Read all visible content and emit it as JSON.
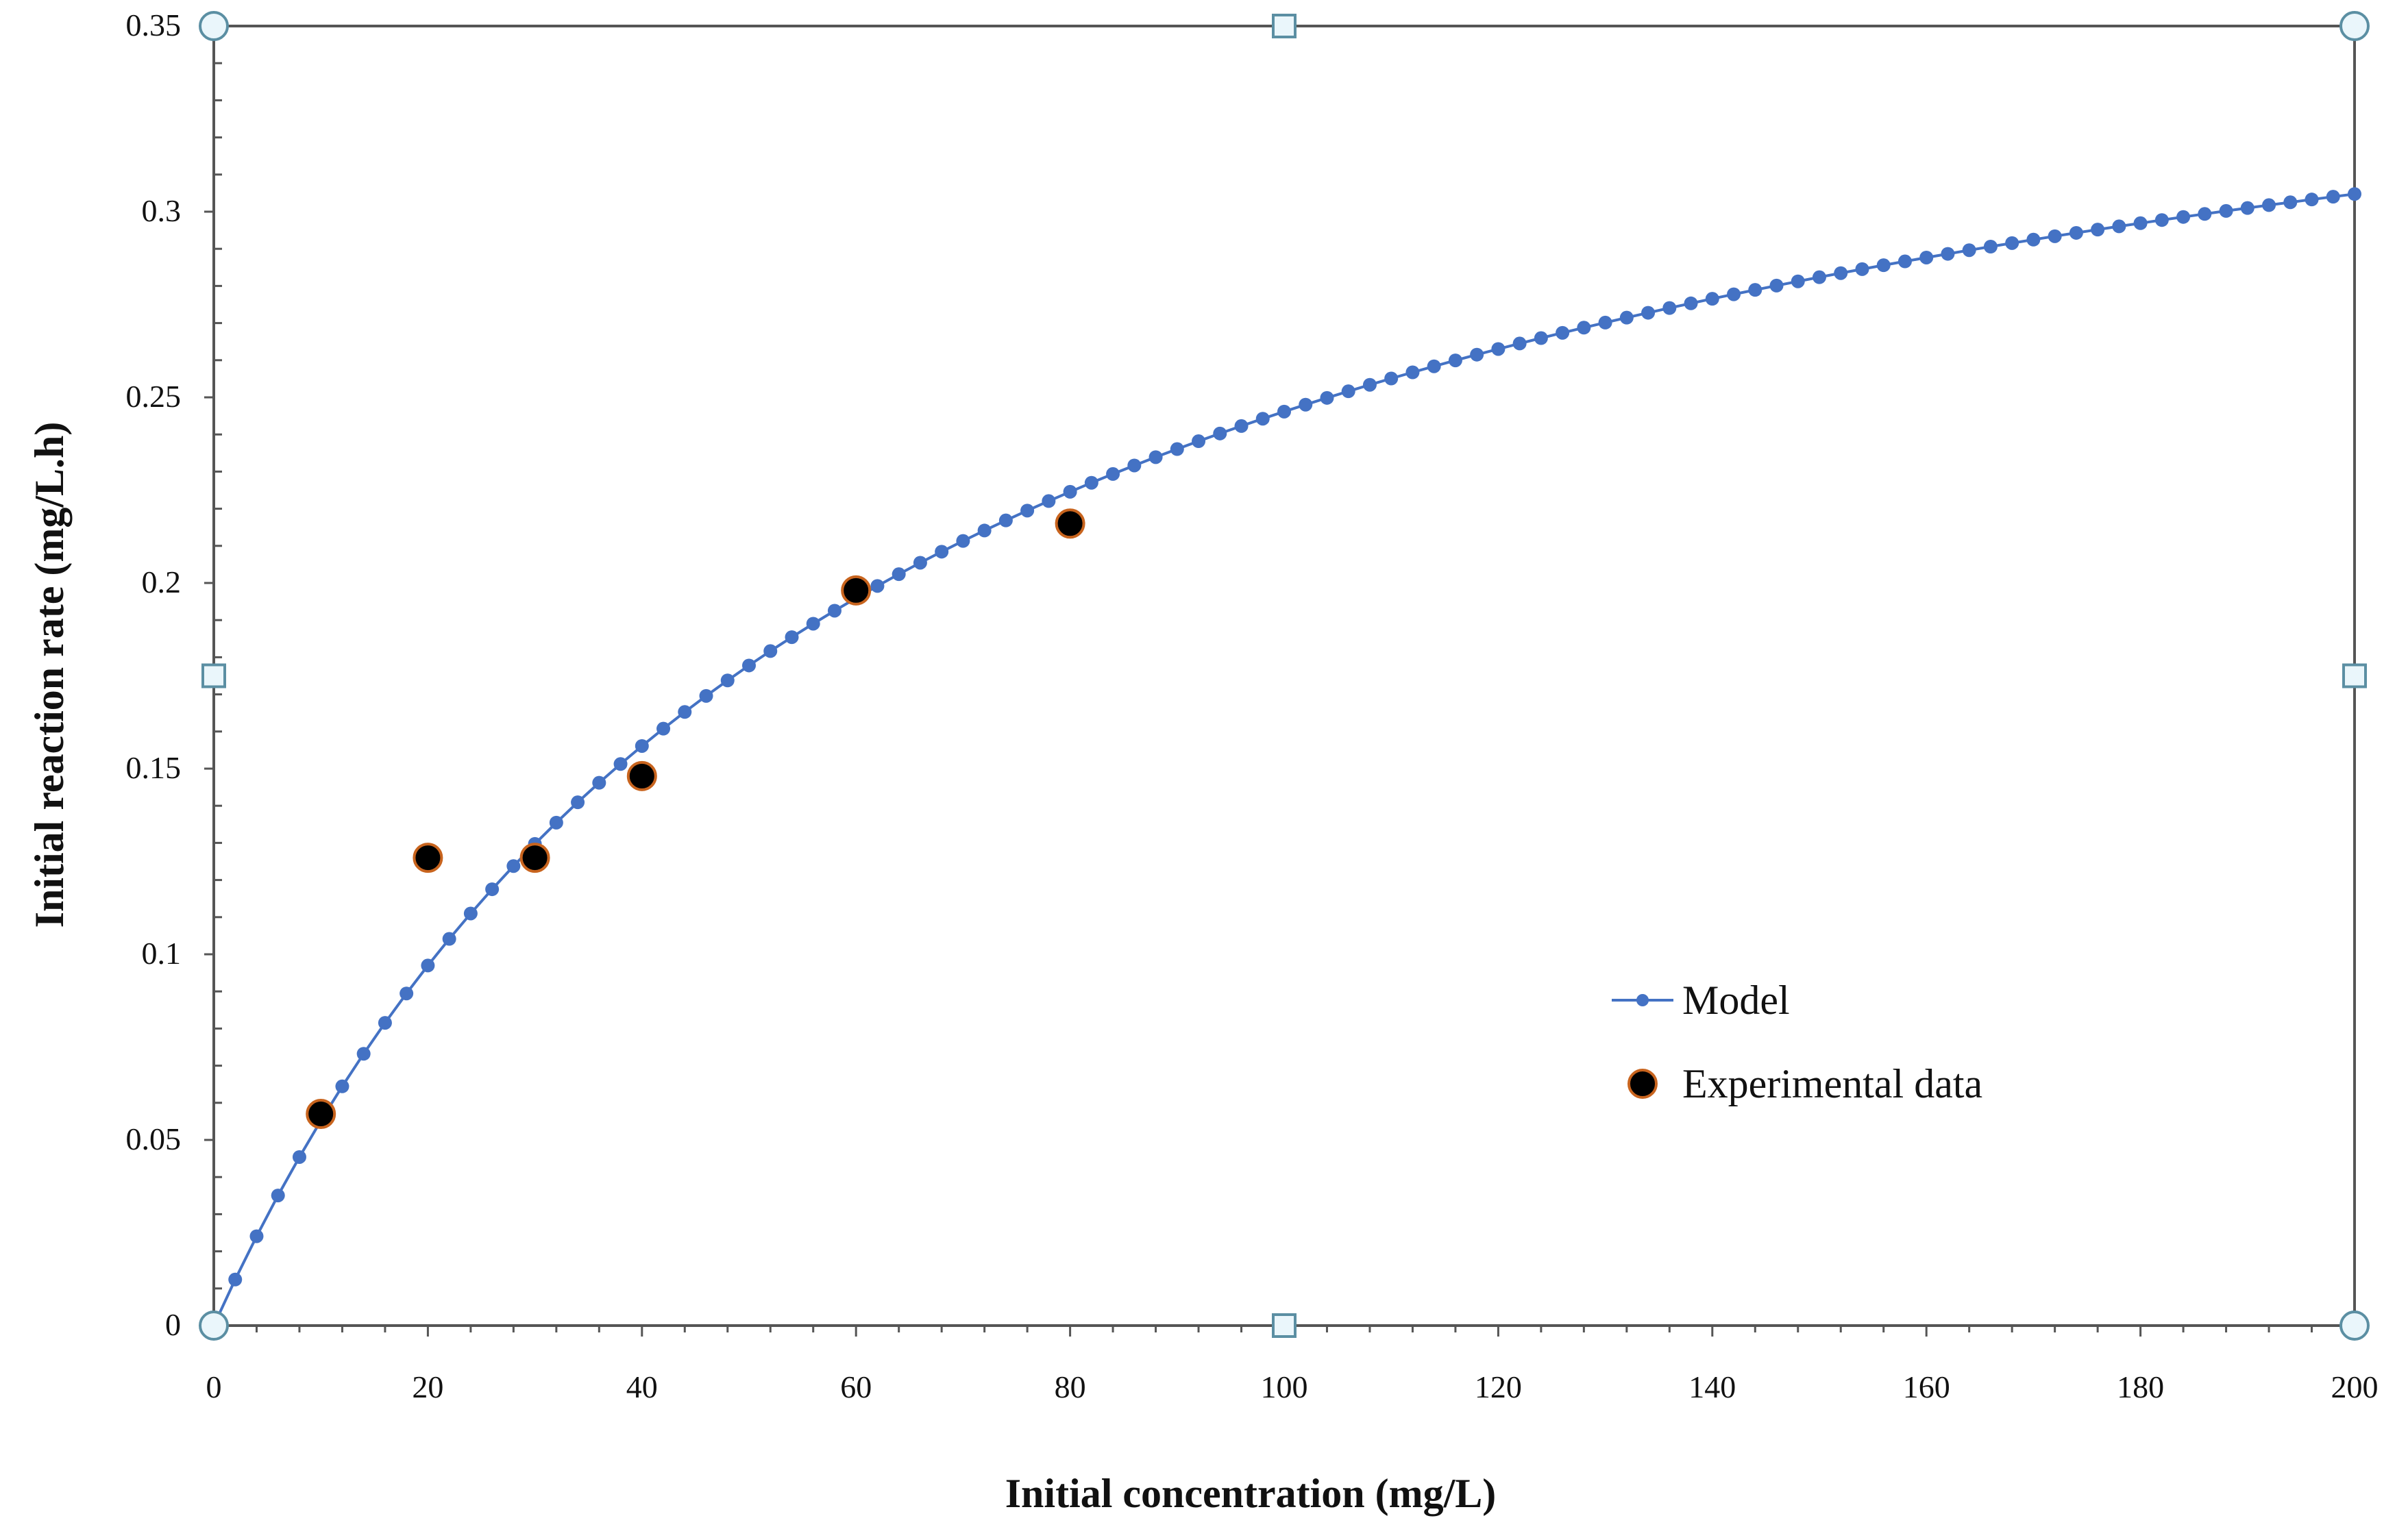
{
  "chart_data": {
    "type": "scatter",
    "xlabel": "Initial concentration  (mg/L)",
    "ylabel": "Initial reaction rate (mg/L.h)",
    "xlim": [
      0,
      200
    ],
    "ylim": [
      0,
      0.35
    ],
    "x_ticks": [
      "0",
      "20",
      "40",
      "60",
      "80",
      "100",
      "120",
      "140",
      "160",
      "180",
      "200"
    ],
    "y_ticks": [
      "0",
      "0.05",
      "0.1",
      "0.15",
      "0.2",
      "0.25",
      "0.3",
      "0.35"
    ],
    "grid": false,
    "legend_position": "center-right",
    "series": [
      {
        "name": "Model",
        "type": "line-with-markers",
        "color": "#4472C4",
        "model": "Michaelis-Menten",
        "vmax": 0.4,
        "k": 62.5,
        "x_start": 0,
        "x_end": 200,
        "x_step": 2
      },
      {
        "name": "Experimental data",
        "type": "scatter",
        "color": "#000000",
        "edge_color": "#c8641e",
        "x": [
          10,
          20,
          30,
          40,
          60,
          80
        ],
        "y": [
          0.057,
          0.126,
          0.126,
          0.148,
          0.198,
          0.216
        ]
      }
    ],
    "colors": {
      "axis": "#555555",
      "handle_fill": "#eaf6fb",
      "handle_stroke": "#5b8fa3"
    }
  }
}
